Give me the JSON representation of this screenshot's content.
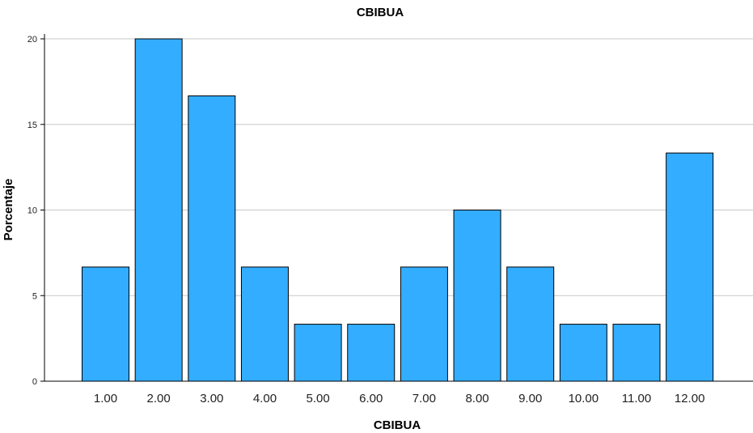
{
  "chart_data": {
    "type": "bar",
    "title": "CBIBUA",
    "xlabel": "CBIBUA",
    "ylabel": "Porcentaje",
    "categories": [
      "1.00",
      "2.00",
      "3.00",
      "4.00",
      "5.00",
      "6.00",
      "7.00",
      "8.00",
      "9.00",
      "10.00",
      "11.00",
      "12.00"
    ],
    "values": [
      6.67,
      20.0,
      16.67,
      6.67,
      3.33,
      3.33,
      6.67,
      10.0,
      6.67,
      3.33,
      3.33,
      13.33
    ],
    "ylim": [
      0,
      20
    ],
    "yticks": [
      "0",
      "5",
      "10",
      "15",
      "20"
    ],
    "grid": true,
    "bar_color": "#33adff"
  }
}
